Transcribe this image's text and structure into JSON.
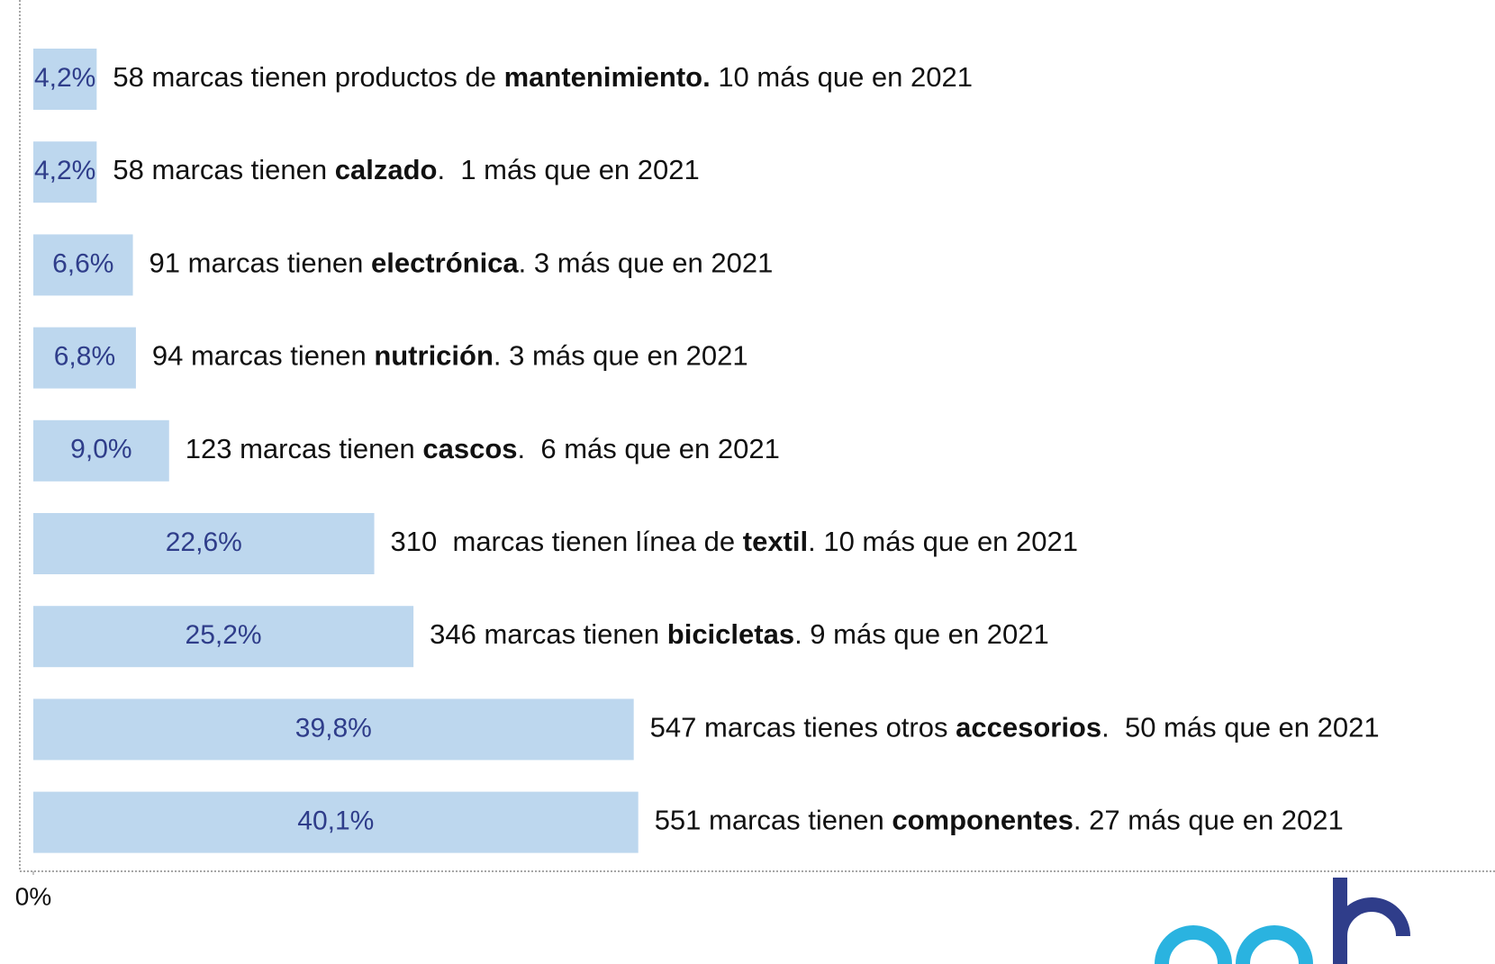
{
  "chart_data": {
    "type": "barh",
    "values": [
      4.2,
      4.2,
      6.6,
      6.8,
      9.0,
      22.6,
      25.2,
      39.8,
      40.1
    ],
    "value_labels": [
      "4,2%",
      "4,2%",
      "6,6%",
      "6,8%",
      "9,0%",
      "22,6%",
      "25,2%",
      "39,8%",
      "40,1%"
    ],
    "annotations": [
      [
        "58 marcas tienen productos de ",
        "mantenimiento.",
        " 10 más que en 2021"
      ],
      [
        "58 marcas tienen ",
        "calzado",
        ".  1 más que en 2021"
      ],
      [
        "91 marcas tienen ",
        "electrónica",
        ". 3 más que en 2021"
      ],
      [
        "94 marcas tienen ",
        "nutrición",
        ". 3 más que en 2021"
      ],
      [
        "123 marcas tienen ",
        "cascos",
        ".  6 más que en 2021"
      ],
      [
        "310  marcas tienen línea de ",
        "textil",
        ". 10 más que en 2021"
      ],
      [
        "346 marcas tienen ",
        "bicicletas",
        ". 9 más que en 2021"
      ],
      [
        "547 marcas tienes otros ",
        "accesorios",
        ".  50 más que en 2021"
      ],
      [
        "551 marcas tienen ",
        "componentes",
        ". 27 más que en 2021"
      ]
    ],
    "color": "#bdd7ee",
    "xlim": [
      0,
      91.4
    ],
    "xticks": [
      {
        "value": 0,
        "label": "0%"
      }
    ]
  }
}
